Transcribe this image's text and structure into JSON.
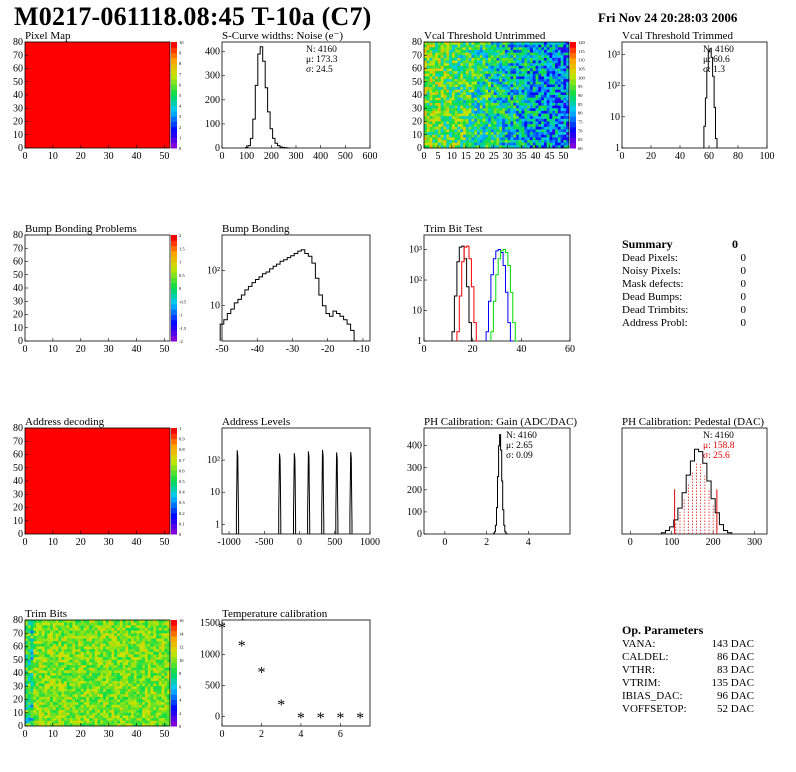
{
  "header": {
    "title": "M0217-061118.08:45 T-10a (C7)",
    "date": "Fri Nov 24 20:28:03 2006"
  },
  "colors": {
    "red": "#ff0000",
    "green": "#00dd00",
    "blue": "#0000ff",
    "black": "#000000"
  },
  "chart_data": [
    {
      "id": "pixel-map",
      "type": "heatmap",
      "title": "Pixel Map",
      "fill": "uniform-red",
      "xlim": [
        0,
        52
      ],
      "ylim": [
        0,
        80
      ],
      "xticks": [
        0,
        10,
        20,
        30,
        40,
        50
      ],
      "yticks": [
        0,
        10,
        20,
        30,
        40,
        50,
        60,
        70,
        80
      ],
      "zticks": [
        0,
        1,
        2,
        3,
        4,
        5,
        6,
        7,
        8,
        9,
        10
      ]
    },
    {
      "id": "scurve",
      "type": "line",
      "title": "S-Curve widths: Noise (e⁻)",
      "xlim": [
        0,
        600
      ],
      "ylim": [
        0,
        440
      ],
      "xticks": [
        0,
        100,
        200,
        300,
        400,
        500,
        600
      ],
      "yticks": [
        0,
        100,
        200,
        300,
        400
      ],
      "stats": {
        "N": "N: 4160",
        "mu": "μ: 173.3",
        "sigma": "σ: 24.5"
      },
      "series": [
        {
          "color": "#000000",
          "x": [
            100,
            110,
            120,
            130,
            140,
            150,
            160,
            170,
            180,
            190,
            200,
            210,
            220,
            230,
            240,
            250,
            260,
            270
          ],
          "y": [
            2,
            10,
            40,
            120,
            260,
            390,
            420,
            360,
            250,
            150,
            80,
            40,
            20,
            10,
            4,
            2,
            1,
            0
          ]
        }
      ]
    },
    {
      "id": "vcal-untrimmed",
      "type": "heatmap",
      "title": "Vcal Threshold Untrimmed",
      "fill": "noisy-green-blue",
      "xlim": [
        0,
        52
      ],
      "ylim": [
        0,
        80
      ],
      "xticks": [
        0,
        5,
        10,
        15,
        20,
        25,
        30,
        35,
        40,
        45,
        50
      ],
      "yticks": [
        0,
        10,
        20,
        30,
        40,
        50,
        60,
        70,
        80
      ],
      "zticks": [
        60,
        65,
        70,
        75,
        80,
        85,
        90,
        95,
        100,
        105,
        110,
        115,
        120
      ]
    },
    {
      "id": "vcal-trimmed",
      "type": "line",
      "title": "Vcal Threshold Trimmed",
      "yscale": "log",
      "xlim": [
        0,
        100
      ],
      "ylim": [
        1,
        2500
      ],
      "xticks": [
        0,
        20,
        40,
        60,
        80,
        100
      ],
      "yticks": [
        1,
        10,
        100,
        1000
      ],
      "stats": {
        "N": "N: 4160",
        "mu": "μ: 60.6",
        "sigma": "σ: 1.3"
      },
      "series": [
        {
          "color": "#000000",
          "x": [
            57,
            58,
            59,
            60,
            61,
            62,
            63,
            64,
            65
          ],
          "y": [
            5,
            40,
            300,
            1200,
            1500,
            800,
            200,
            20,
            2
          ]
        }
      ]
    },
    {
      "id": "bump-problems",
      "type": "heatmap",
      "title": "Bump Bonding Problems",
      "fill": "empty",
      "xlim": [
        0,
        52
      ],
      "ylim": [
        0,
        80
      ],
      "xticks": [
        0,
        10,
        20,
        30,
        40,
        50
      ],
      "yticks": [
        0,
        10,
        20,
        30,
        40,
        50,
        60,
        70,
        80
      ],
      "zticks": [
        -2,
        -1.5,
        -1,
        -0.5,
        0,
        0.5,
        1,
        1.5,
        2
      ]
    },
    {
      "id": "bump-bonding",
      "type": "line",
      "title": "Bump Bonding",
      "yscale": "log",
      "xlim": [
        -50,
        -8
      ],
      "ylim": [
        1,
        1000
      ],
      "xticks": [
        -50,
        -40,
        -30,
        -20,
        -10
      ],
      "yticks": [
        10,
        100
      ],
      "series": [
        {
          "color": "#000000",
          "x": [
            -50,
            -49,
            -48,
            -47,
            -46,
            -45,
            -44,
            -43,
            -42,
            -41,
            -40,
            -39,
            -38,
            -37,
            -36,
            -35,
            -34,
            -33,
            -32,
            -31,
            -30,
            -29,
            -28,
            -27,
            -26,
            -25,
            -24,
            -23,
            -22,
            -21,
            -20,
            -19,
            -18,
            -17,
            -16,
            -15,
            -14,
            -13,
            -12
          ],
          "y": [
            3,
            4,
            6,
            8,
            12,
            15,
            20,
            28,
            35,
            45,
            55,
            65,
            80,
            90,
            110,
            130,
            150,
            180,
            200,
            230,
            260,
            300,
            350,
            380,
            300,
            250,
            160,
            60,
            20,
            10,
            6,
            5,
            7,
            6,
            5,
            4,
            3,
            2,
            1
          ]
        }
      ]
    },
    {
      "id": "trim-bit-test",
      "type": "line",
      "title": "Trim Bit Test",
      "yscale": "log",
      "xlim": [
        0,
        60
      ],
      "ylim": [
        1,
        3000
      ],
      "xticks": [
        0,
        20,
        40,
        60
      ],
      "yticks": [
        1,
        10,
        100,
        1000
      ],
      "series": [
        {
          "color": "#000000",
          "x": [
            12,
            13,
            14,
            15,
            16,
            17,
            18,
            19,
            20
          ],
          "y": [
            2,
            30,
            400,
            1200,
            1300,
            500,
            60,
            4,
            1
          ]
        },
        {
          "color": "#ff0000",
          "x": [
            14,
            15,
            16,
            17,
            18,
            19,
            20,
            21,
            22
          ],
          "y": [
            2,
            30,
            400,
            1200,
            1300,
            500,
            60,
            4,
            1
          ]
        },
        {
          "color": "#0000ff",
          "x": [
            26,
            27,
            28,
            29,
            30,
            31,
            32,
            33,
            34,
            35,
            36
          ],
          "y": [
            2,
            20,
            150,
            500,
            900,
            1000,
            800,
            300,
            40,
            4,
            1
          ]
        },
        {
          "color": "#00dd00",
          "x": [
            28,
            29,
            30,
            31,
            32,
            33,
            34,
            35,
            36,
            37,
            38
          ],
          "y": [
            2,
            20,
            150,
            500,
            900,
            1000,
            800,
            300,
            40,
            4,
            1
          ]
        }
      ]
    },
    {
      "id": "address-decoding",
      "type": "heatmap",
      "title": "Address decoding",
      "fill": "uniform-red",
      "xlim": [
        0,
        52
      ],
      "ylim": [
        0,
        80
      ],
      "xticks": [
        0,
        10,
        20,
        30,
        40,
        50
      ],
      "yticks": [
        0,
        10,
        20,
        30,
        40,
        50,
        60,
        70,
        80
      ],
      "zticks": [
        0,
        0.1,
        0.2,
        0.3,
        0.4,
        0.5,
        0.6,
        0.7,
        0.8,
        0.9,
        1
      ]
    },
    {
      "id": "address-levels",
      "type": "line",
      "title": "Address Levels",
      "yscale": "log",
      "xlim": [
        -1100,
        1000
      ],
      "ylim": [
        0.5,
        1000
      ],
      "xticks": [
        -1000,
        -500,
        0,
        500,
        1000
      ],
      "yticks": [
        1,
        10,
        100
      ],
      "series": [
        {
          "color": "#000000",
          "peaks": [
            -880,
            -280,
            -70,
            130,
            330,
            530,
            730
          ],
          "peak_height": 200
        }
      ]
    },
    {
      "id": "ph-gain",
      "type": "line",
      "title": "PH Calibration: Gain (ADC/DAC)",
      "xlim": [
        -1,
        6
      ],
      "ylim": [
        0,
        480
      ],
      "xticks": [
        0,
        2,
        4
      ],
      "yticks": [
        0,
        100,
        200,
        300,
        400
      ],
      "stats": {
        "N": "N: 4160",
        "mu": "μ: 2.65",
        "sigma": "σ: 0.09"
      },
      "series": [
        {
          "color": "#000000",
          "x": [
            2.35,
            2.4,
            2.45,
            2.5,
            2.55,
            2.6,
            2.65,
            2.7,
            2.75,
            2.8,
            2.85,
            2.9,
            2.95
          ],
          "y": [
            2,
            10,
            40,
            120,
            260,
            400,
            450,
            380,
            240,
            110,
            40,
            10,
            2
          ]
        }
      ]
    },
    {
      "id": "ph-pedestal",
      "type": "line",
      "title": "PH Calibration: Pedestal (DAC)",
      "xlim": [
        -20,
        330
      ],
      "ylim": [
        0,
        90
      ],
      "xticks": [
        0,
        100,
        200,
        300
      ],
      "stats": {
        "N": "N: 4160",
        "mu": "μ: 158.8",
        "sigma": "σ: 25.6"
      },
      "markers": [
        107,
        209
      ],
      "series": [
        {
          "color": "#000000",
          "x": [
            80,
            90,
            100,
            110,
            120,
            130,
            140,
            150,
            160,
            170,
            180,
            190,
            200,
            210,
            220,
            230,
            240
          ],
          "y": [
            1,
            3,
            6,
            12,
            22,
            35,
            50,
            62,
            72,
            70,
            60,
            45,
            30,
            18,
            8,
            3,
            1
          ]
        }
      ]
    },
    {
      "id": "trim-bits",
      "type": "heatmap",
      "title": "Trim Bits",
      "fill": "noisy-green-yellow",
      "xlim": [
        0,
        52
      ],
      "ylim": [
        0,
        80
      ],
      "xticks": [
        0,
        10,
        20,
        30,
        40,
        50
      ],
      "yticks": [
        0,
        10,
        20,
        30,
        40,
        50,
        60,
        70,
        80
      ],
      "zticks": [
        0,
        2,
        4,
        6,
        8,
        10,
        12,
        14,
        16
      ]
    },
    {
      "id": "temperature-calibration",
      "type": "scatter",
      "title": "Temperature calibration",
      "xlim": [
        0,
        7.5
      ],
      "ylim": [
        -150,
        1550
      ],
      "xticks": [
        0,
        2,
        4,
        6
      ],
      "yticks": [
        0,
        500,
        1000,
        1500
      ],
      "series": [
        {
          "color": "#000000",
          "x": [
            0,
            1,
            2,
            3,
            4,
            5,
            6,
            7
          ],
          "y": [
            1420,
            1130,
            710,
            190,
            -20,
            -20,
            -20,
            -20
          ]
        }
      ]
    }
  ],
  "summary": {
    "title": "Summary",
    "value": "0",
    "rows": [
      {
        "label": "Dead Pixels:",
        "value": "0"
      },
      {
        "label": "Noisy Pixels:",
        "value": "0"
      },
      {
        "label": "Mask defects:",
        "value": "0"
      },
      {
        "label": "Dead Bumps:",
        "value": "0"
      },
      {
        "label": "Dead Trimbits:",
        "value": "0"
      },
      {
        "label": "Address Probl:",
        "value": "0"
      }
    ]
  },
  "op_parameters": {
    "title": "Op. Parameters",
    "rows": [
      {
        "label": "VANA:",
        "value": "143 DAC"
      },
      {
        "label": "CALDEL:",
        "value": "86 DAC"
      },
      {
        "label": "VTHR:",
        "value": "83 DAC"
      },
      {
        "label": "VTRIM:",
        "value": "135 DAC"
      },
      {
        "label": "IBIAS_DAC:",
        "value": "96 DAC"
      },
      {
        "label": "VOFFSETOP:",
        "value": "52 DAC"
      }
    ]
  }
}
